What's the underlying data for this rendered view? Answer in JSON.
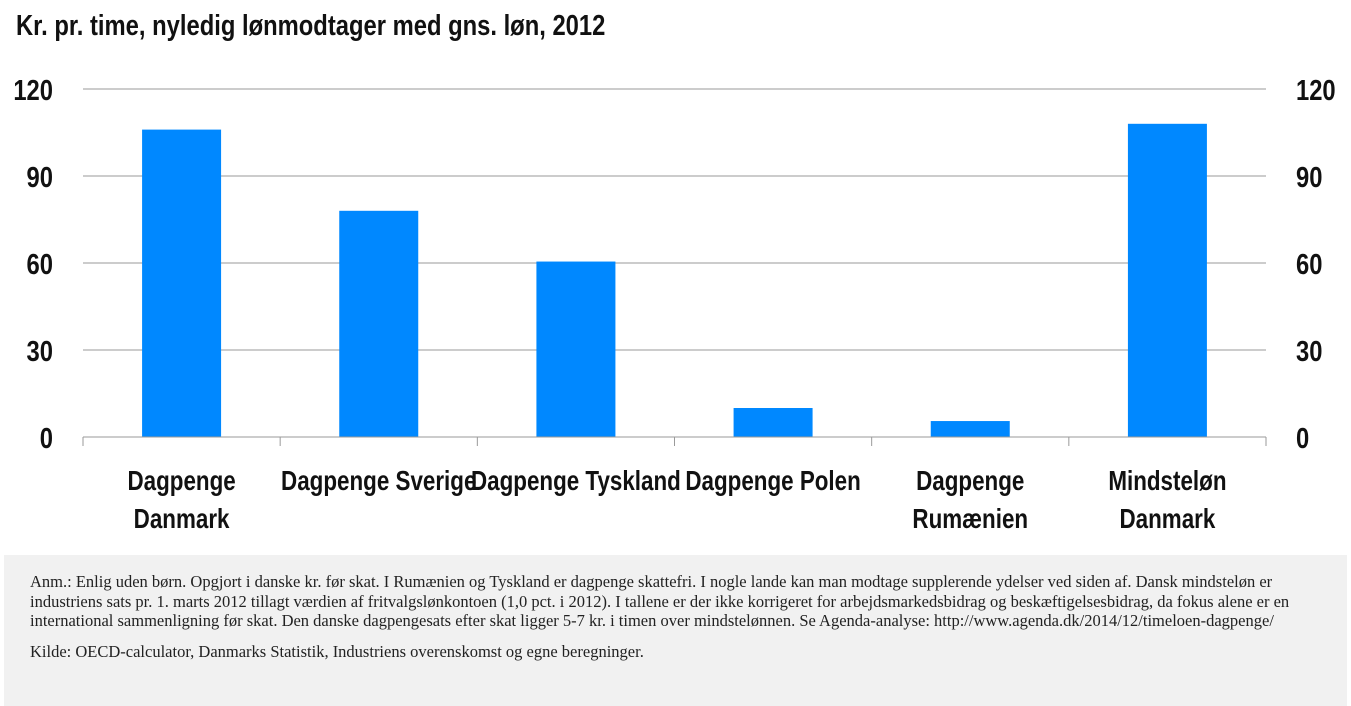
{
  "title": "Kr. pr. time, nyledig lønmodtager med gns. løn, 2012",
  "chart_data": {
    "type": "bar",
    "title": "Kr. pr. time, nyledig lønmodtager med gns. løn, 2012",
    "categories": [
      [
        "Dagpenge",
        "Danmark"
      ],
      [
        "Dagpenge Sverige"
      ],
      [
        "Dagpenge Tyskland"
      ],
      [
        "Dagpenge Polen"
      ],
      [
        "Dagpenge",
        "Rumænien"
      ],
      [
        "Mindsteløn",
        "Danmark"
      ]
    ],
    "values": [
      106,
      78,
      60.5,
      10,
      5.5,
      108
    ],
    "ylim": [
      0,
      120
    ],
    "yticks": [
      "0",
      "30",
      "60",
      "90",
      "120"
    ],
    "secondary_axis": true,
    "grid": true,
    "bar_color": "#0088ff",
    "xlabel": "",
    "ylabel": ""
  },
  "notes": {
    "anm": "Anm.: Enlig uden børn. Opgjort i danske kr. før skat. I Rumænien og Tyskland er dagpenge skattefri. I nogle lande kan man modtage supplerende ydelser ved siden af. Dansk mindsteløn er industriens sats pr. 1. marts 2012 tillagt værdien af fritvalgslønkontoen (1,0 pct. i 2012). I tallene er der ikke korrigeret for arbejdsmarkedsbidrag og beskæftigelsesbidrag, da fokus alene er en international sammenligning før skat. Den danske dagpengesats efter skat ligger 5-7 kr. i timen over mindstelønnen. Se Agenda-analyse: http://www.agenda.dk/2014/12/timeloen-dagpenge/",
    "source": "Kilde: OECD-calculator, Danmarks Statistik, Industriens overenskomst og egne beregninger."
  }
}
